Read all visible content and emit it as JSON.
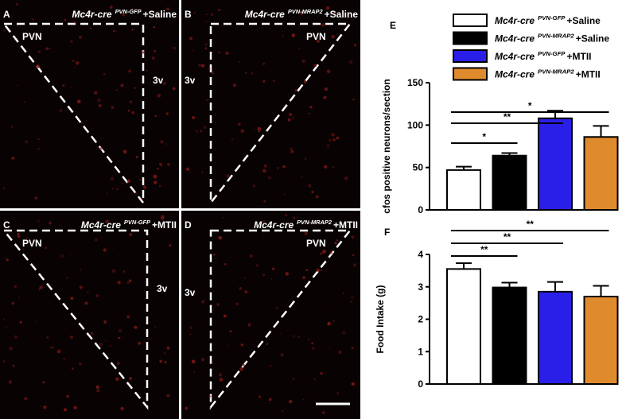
{
  "panels": [
    {
      "letter": "A",
      "title": {
        "base": "Mc4r-cre",
        "sup": "PVN-GFP",
        "suffix": "+Saline"
      },
      "labels": [
        "PVN",
        "3v"
      ]
    },
    {
      "letter": "B",
      "title": {
        "base": "Mc4r-cre",
        "sup": "PVN-MRAP2",
        "suffix": "+Saline"
      },
      "labels": [
        "PVN",
        "3v"
      ]
    },
    {
      "letter": "C",
      "title": {
        "base": "Mc4r-cre",
        "sup": "PVN-GFP",
        "suffix": "+MTII"
      },
      "labels": [
        "PVN",
        "3v"
      ]
    },
    {
      "letter": "D",
      "title": {
        "base": "Mc4r-cre",
        "sup": "PVN-MRAP2",
        "suffix": "+MTII"
      },
      "labels": [
        "PVN",
        "3v"
      ]
    }
  ],
  "chart_data": [
    {
      "type": "bar",
      "letter": "E",
      "ylabel": "cfos positive neurons/section",
      "values": [
        47,
        64,
        108,
        86
      ],
      "errors": [
        4,
        3,
        9,
        13
      ],
      "colors": [
        "#ffffff",
        "#000000",
        "#2a1fe8",
        "#e08a2e"
      ],
      "ylim": [
        0,
        150
      ],
      "yticks": [
        0,
        50,
        100,
        150
      ],
      "legend": [
        {
          "base": "Mc4r-cre",
          "sup": "PVN-GFP",
          "suffix": "+Saline"
        },
        {
          "base": "Mc4r-cre",
          "sup": "PVN-MRAP2",
          "suffix": "+Saline"
        },
        {
          "base": "Mc4r-cre",
          "sup": "PVN-GFP",
          "suffix": "+MTII"
        },
        {
          "base": "Mc4r-cre",
          "sup": "PVN-MRAP2",
          "suffix": "+MTII"
        }
      ],
      "significance": [
        {
          "label": "*",
          "from": 0,
          "to": 1
        },
        {
          "label": "**",
          "from": 0,
          "to": 2
        },
        {
          "label": "*",
          "from": 0,
          "to": 3
        }
      ]
    },
    {
      "type": "bar",
      "letter": "F",
      "ylabel": "Food Intake (g)",
      "values": [
        3.55,
        2.98,
        2.85,
        2.7
      ],
      "errors": [
        0.18,
        0.15,
        0.3,
        0.33
      ],
      "colors": [
        "#ffffff",
        "#000000",
        "#2a1fe8",
        "#e08a2e"
      ],
      "ylim": [
        0,
        4
      ],
      "yticks": [
        0,
        1,
        2,
        3,
        4
      ],
      "significance": [
        {
          "label": "**",
          "from": 0,
          "to": 1
        },
        {
          "label": "**",
          "from": 0,
          "to": 2
        },
        {
          "label": "**",
          "from": 0,
          "to": 3
        }
      ]
    }
  ]
}
